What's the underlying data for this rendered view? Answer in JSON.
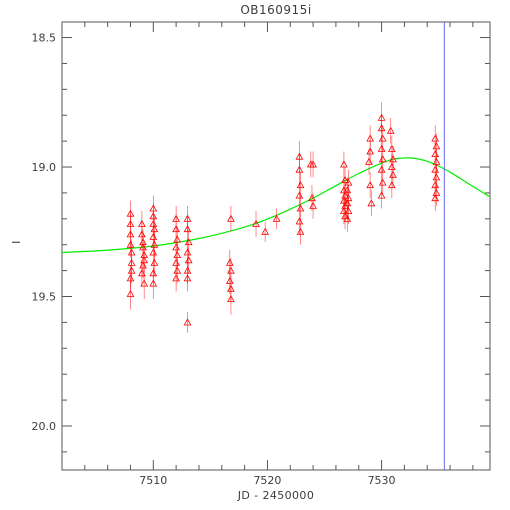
{
  "chart_data": {
    "type": "scatter",
    "title": "OB160915i",
    "xlabel": "JD - 2450000",
    "ylabel": "I",
    "xlim": [
      7502,
      7539.5
    ],
    "ylim": [
      20.17,
      18.44
    ],
    "y_inverted": true,
    "xticks": [
      7510,
      7520,
      7530
    ],
    "xtick_labels": [
      "7510",
      "7520",
      "7530"
    ],
    "yticks": [
      18.5,
      19.0,
      19.5,
      20.0
    ],
    "ytick_labels": [
      "18.5",
      "19.0",
      "19.5",
      "20.0"
    ],
    "grid": false,
    "legend": "none",
    "vertical_line": {
      "x": 7535.5
    },
    "colors": {
      "data": "#ff0000",
      "model": "#00ee00",
      "marker_line": "#6a6aee",
      "frame": "#555555"
    },
    "series": [
      {
        "style": "triangles-with-error-bars",
        "points": [
          [
            7508.0,
            19.18,
            0.05
          ],
          [
            7508.0,
            19.22,
            0.05
          ],
          [
            7508.0,
            19.26,
            0.05
          ],
          [
            7508.0,
            19.3,
            0.05
          ],
          [
            7508.1,
            19.33,
            0.05
          ],
          [
            7508.1,
            19.37,
            0.05
          ],
          [
            7508.1,
            19.4,
            0.05
          ],
          [
            7508.0,
            19.43,
            0.05
          ],
          [
            7508.0,
            19.49,
            0.06
          ],
          [
            7509.0,
            19.22,
            0.05
          ],
          [
            7509.0,
            19.26,
            0.05
          ],
          [
            7509.1,
            19.29,
            0.05
          ],
          [
            7509.1,
            19.31,
            0.05
          ],
          [
            7509.2,
            19.34,
            0.05
          ],
          [
            7509.2,
            19.36,
            0.05
          ],
          [
            7509.1,
            19.38,
            0.05
          ],
          [
            7509.0,
            19.41,
            0.05
          ],
          [
            7509.2,
            19.45,
            0.06
          ],
          [
            7510.0,
            19.16,
            0.05
          ],
          [
            7510.0,
            19.19,
            0.05
          ],
          [
            7510.0,
            19.22,
            0.05
          ],
          [
            7510.1,
            19.24,
            0.05
          ],
          [
            7510.0,
            19.27,
            0.05
          ],
          [
            7510.1,
            19.3,
            0.05
          ],
          [
            7510.0,
            19.33,
            0.05
          ],
          [
            7510.1,
            19.37,
            0.05
          ],
          [
            7510.0,
            19.41,
            0.05
          ],
          [
            7510.0,
            19.45,
            0.06
          ],
          [
            7512.0,
            19.2,
            0.05
          ],
          [
            7512.0,
            19.24,
            0.05
          ],
          [
            7512.1,
            19.28,
            0.05
          ],
          [
            7512.0,
            19.31,
            0.05
          ],
          [
            7512.1,
            19.34,
            0.05
          ],
          [
            7512.0,
            19.37,
            0.05
          ],
          [
            7512.1,
            19.4,
            0.05
          ],
          [
            7512.0,
            19.43,
            0.05
          ],
          [
            7513.0,
            19.2,
            0.05
          ],
          [
            7513.0,
            19.24,
            0.05
          ],
          [
            7513.1,
            19.29,
            0.05
          ],
          [
            7513.0,
            19.33,
            0.05
          ],
          [
            7513.1,
            19.36,
            0.05
          ],
          [
            7513.0,
            19.4,
            0.05
          ],
          [
            7513.0,
            19.43,
            0.05
          ],
          [
            7513.0,
            19.6,
            0.04
          ],
          [
            7516.8,
            19.2,
            0.05
          ],
          [
            7516.7,
            19.37,
            0.05
          ],
          [
            7516.8,
            19.4,
            0.05
          ],
          [
            7516.7,
            19.44,
            0.05
          ],
          [
            7516.8,
            19.47,
            0.05
          ],
          [
            7516.8,
            19.51,
            0.06
          ],
          [
            7519.0,
            19.22,
            0.05
          ],
          [
            7519.8,
            19.25,
            0.04
          ],
          [
            7520.8,
            19.2,
            0.04
          ],
          [
            7522.8,
            18.96,
            0.06
          ],
          [
            7522.8,
            19.01,
            0.06
          ],
          [
            7522.9,
            19.07,
            0.05
          ],
          [
            7522.8,
            19.11,
            0.05
          ],
          [
            7522.9,
            19.16,
            0.05
          ],
          [
            7522.8,
            19.21,
            0.05
          ],
          [
            7522.9,
            19.25,
            0.05
          ],
          [
            7523.8,
            18.99,
            0.05
          ],
          [
            7524.0,
            18.99,
            0.05
          ],
          [
            7523.9,
            19.12,
            0.05
          ],
          [
            7524.0,
            19.15,
            0.05
          ],
          [
            7526.7,
            18.99,
            0.05
          ],
          [
            7526.8,
            19.05,
            0.05
          ],
          [
            7526.7,
            19.09,
            0.05
          ],
          [
            7526.8,
            19.11,
            0.05
          ],
          [
            7526.7,
            19.13,
            0.05
          ],
          [
            7526.8,
            19.15,
            0.05
          ],
          [
            7526.7,
            19.17,
            0.05
          ],
          [
            7526.8,
            19.19,
            0.05
          ],
          [
            7527.1,
            19.06,
            0.05
          ],
          [
            7527.0,
            19.09,
            0.05
          ],
          [
            7527.1,
            19.12,
            0.05
          ],
          [
            7527.0,
            19.14,
            0.05
          ],
          [
            7527.1,
            19.17,
            0.05
          ],
          [
            7527.0,
            19.2,
            0.05
          ],
          [
            7529.0,
            18.89,
            0.05
          ],
          [
            7529.0,
            18.94,
            0.05
          ],
          [
            7528.9,
            18.98,
            0.05
          ],
          [
            7529.0,
            19.07,
            0.05
          ],
          [
            7529.1,
            19.14,
            0.05
          ],
          [
            7530.0,
            18.81,
            0.06
          ],
          [
            7530.0,
            18.85,
            0.05
          ],
          [
            7530.1,
            18.89,
            0.05
          ],
          [
            7530.0,
            18.93,
            0.05
          ],
          [
            7530.1,
            18.97,
            0.05
          ],
          [
            7530.0,
            19.01,
            0.05
          ],
          [
            7530.1,
            19.06,
            0.05
          ],
          [
            7530.0,
            19.11,
            0.05
          ],
          [
            7530.8,
            18.86,
            0.05
          ],
          [
            7530.9,
            18.93,
            0.05
          ],
          [
            7531.0,
            18.97,
            0.05
          ],
          [
            7530.9,
            19.0,
            0.05
          ],
          [
            7531.0,
            19.03,
            0.05
          ],
          [
            7530.9,
            19.07,
            0.05
          ],
          [
            7534.7,
            18.89,
            0.05
          ],
          [
            7534.8,
            18.92,
            0.05
          ],
          [
            7534.7,
            18.95,
            0.05
          ],
          [
            7534.8,
            18.98,
            0.05
          ],
          [
            7534.7,
            19.01,
            0.05
          ],
          [
            7534.8,
            19.04,
            0.05
          ],
          [
            7534.7,
            19.07,
            0.05
          ],
          [
            7534.8,
            19.1,
            0.05
          ],
          [
            7534.7,
            19.12,
            0.05
          ]
        ]
      },
      {
        "style": "model-curve",
        "x": [
          7502,
          7505,
          7508,
          7510,
          7512,
          7514,
          7516,
          7518,
          7520,
          7522,
          7524,
          7526,
          7528,
          7530,
          7531,
          7532,
          7533,
          7534,
          7535,
          7536,
          7537,
          7538,
          7539.5
        ],
        "y": [
          19.33,
          19.324,
          19.314,
          19.305,
          19.292,
          19.276,
          19.256,
          19.232,
          19.201,
          19.163,
          19.12,
          19.072,
          19.025,
          18.985,
          18.97,
          18.965,
          18.967,
          18.978,
          18.996,
          19.02,
          19.047,
          19.075,
          19.115
        ]
      }
    ]
  }
}
